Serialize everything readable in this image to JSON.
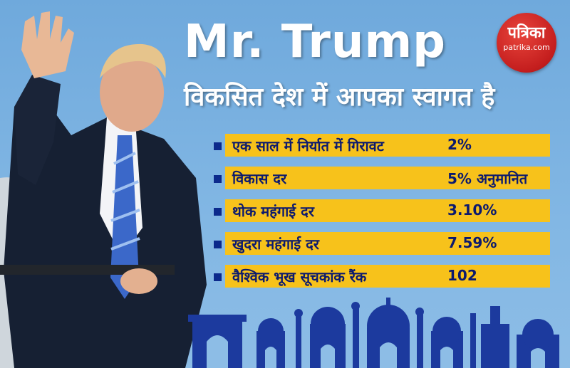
{
  "title": "Mr. Trump",
  "subtitle": "विकसित देश में आपका स्वागत है",
  "logo": {
    "name": "पत्रिका",
    "site": "patrika.com"
  },
  "stats": [
    {
      "label": "एक साल में निर्यात में गिरावट",
      "value": "2%"
    },
    {
      "label": "विकास दर",
      "value": "5% अनुमानित"
    },
    {
      "label": "थोक महंगाई दर",
      "value": "3.10%"
    },
    {
      "label": "खुदरा महंगाई दर",
      "value": "7.59%"
    },
    {
      "label": "वैश्विक भूख सूचकांक रैंक",
      "value": "102"
    }
  ],
  "colors": {
    "background": "#7fb4e2",
    "bar": "#f7c21b",
    "text": "#0c1a6e",
    "skyline": "#1c3a9e",
    "logo": "#c41e1e"
  }
}
